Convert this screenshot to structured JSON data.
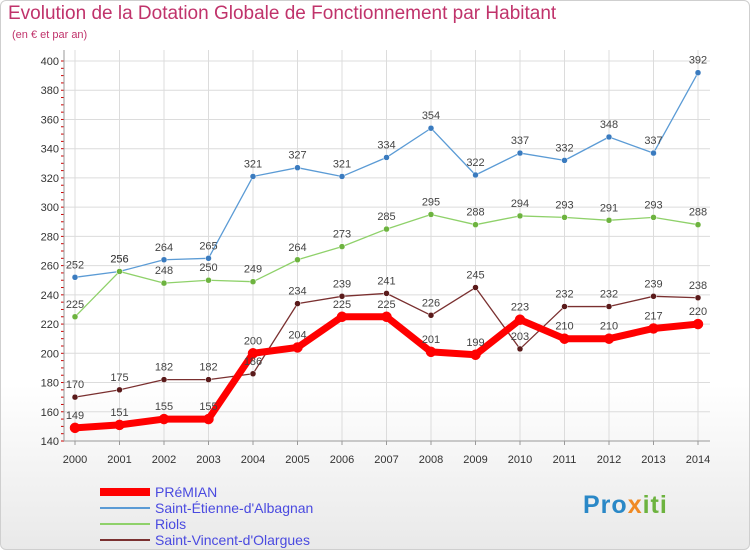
{
  "title": "Evolution de la Dotation Globale de Fonctionnement par Habitant",
  "subtitle": "(en € et par an)",
  "colors": {
    "title": "#c0336b",
    "axis_text": "#333333",
    "legend_text": "#4a4ae0",
    "grid": "#dcdcdc",
    "tick_marks": "#cc0000"
  },
  "logo": {
    "part1": "Pro",
    "part2": "x",
    "part3": "iti"
  },
  "chart_data": {
    "type": "line",
    "title": "Evolution de la Dotation Globale de Fonctionnement par Habitant",
    "subtitle": "(en € et par an)",
    "xlabel": "",
    "ylabel": "",
    "x": [
      "2000",
      "2001",
      "2002",
      "2003",
      "2004",
      "2005",
      "2006",
      "2007",
      "2008",
      "2009",
      "2010",
      "2011",
      "2012",
      "2013",
      "2014"
    ],
    "ylim": [
      140,
      400
    ],
    "yticks": [
      140,
      160,
      180,
      200,
      220,
      240,
      260,
      280,
      300,
      320,
      340,
      360,
      380,
      400
    ],
    "grid": true,
    "legend_position": "bottom-left",
    "series": [
      {
        "name": "Saint-Étienne-d'Albagnan",
        "color": "#5b9bd5",
        "marker": "#3a7bbf",
        "width": 1.3,
        "values": [
          252,
          256,
          264,
          265,
          321,
          327,
          321,
          334,
          354,
          322,
          337,
          332,
          348,
          337,
          392
        ]
      },
      {
        "name": "Riols",
        "color": "#8fd16a",
        "marker": "#6db33f",
        "width": 1.3,
        "values": [
          225,
          256,
          248,
          250,
          249,
          264,
          273,
          285,
          295,
          288,
          294,
          293,
          291,
          293,
          288
        ]
      },
      {
        "name": "Saint-Vincent-d'Olargues",
        "color": "#7a3030",
        "marker": "#5a1a1a",
        "width": 1.3,
        "values": [
          170,
          175,
          182,
          182,
          186,
          234,
          239,
          241,
          226,
          245,
          203,
          232,
          232,
          239,
          238
        ]
      },
      {
        "name": "PRéMIAN",
        "color": "#ff0000",
        "marker": "#ff0000",
        "width": 7,
        "values": [
          149,
          151,
          155,
          155,
          200,
          204,
          225,
          225,
          201,
          199,
          223,
          210,
          210,
          217,
          220
        ]
      }
    ],
    "legend": [
      "PRéMIAN",
      "Saint-Étienne-d'Albagnan",
      "Riols",
      "Saint-Vincent-d'Olargues"
    ]
  }
}
